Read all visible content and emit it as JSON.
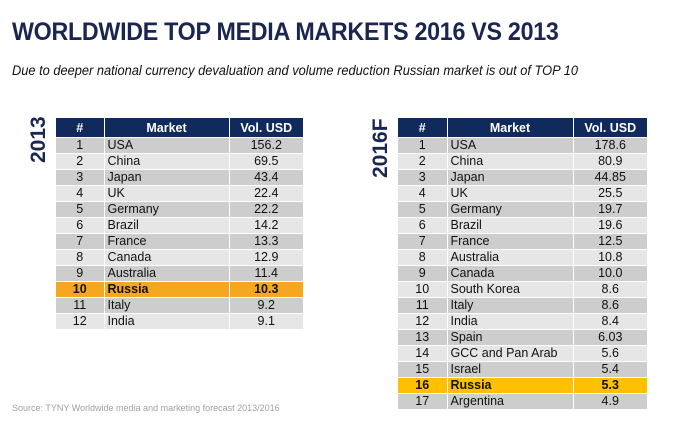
{
  "title": "WORLDWIDE TOP MEDIA MARKETS 2016 VS 2013",
  "subtitle": "Due to deeper  national currency devaluation and volume reduction Russian market is out of TOP 10",
  "colors": {
    "header_bg": "#102a5c",
    "title": "#1a2650",
    "highlight_2013": "#f5a81f",
    "highlight_2016": "#ffc000",
    "row_dark": "#cdcdcd",
    "row_light": "#e6e6e6"
  },
  "tables": [
    {
      "year_label": "2013",
      "headers": [
        "#",
        "Market",
        "Vol. USD"
      ],
      "highlight_market": "Russia",
      "rows": [
        {
          "rank": "1",
          "market": "USA",
          "vol": "156.2"
        },
        {
          "rank": "2",
          "market": "China",
          "vol": "69.5"
        },
        {
          "rank": "3",
          "market": "Japan",
          "vol": "43.4"
        },
        {
          "rank": "4",
          "market": "UK",
          "vol": "22.4"
        },
        {
          "rank": "5",
          "market": "Germany",
          "vol": "22.2"
        },
        {
          "rank": "6",
          "market": "Brazil",
          "vol": "14.2"
        },
        {
          "rank": "7",
          "market": "France",
          "vol": "13.3"
        },
        {
          "rank": "8",
          "market": "Canada",
          "vol": "12.9"
        },
        {
          "rank": "9",
          "market": "Australia",
          "vol": "11.4"
        },
        {
          "rank": "10",
          "market": "Russia",
          "vol": "10.3"
        },
        {
          "rank": "11",
          "market": "Italy",
          "vol": "9.2"
        },
        {
          "rank": "12",
          "market": "India",
          "vol": "9.1"
        }
      ]
    },
    {
      "year_label": "2016F",
      "headers": [
        "#",
        "Market",
        "Vol. USD"
      ],
      "highlight_market": "Russia",
      "rows": [
        {
          "rank": "1",
          "market": "USA",
          "vol": "178.6"
        },
        {
          "rank": "2",
          "market": "China",
          "vol": "80.9"
        },
        {
          "rank": "3",
          "market": "Japan",
          "vol": "44.85"
        },
        {
          "rank": "4",
          "market": "UK",
          "vol": "25.5"
        },
        {
          "rank": "5",
          "market": "Germany",
          "vol": "19.7"
        },
        {
          "rank": "6",
          "market": "Brazil",
          "vol": "19.6"
        },
        {
          "rank": "7",
          "market": "France",
          "vol": "12.5"
        },
        {
          "rank": "8",
          "market": "Australia",
          "vol": "10.8"
        },
        {
          "rank": "9",
          "market": "Canada",
          "vol": "10.0"
        },
        {
          "rank": "10",
          "market": "South Korea",
          "vol": "8.6"
        },
        {
          "rank": "11",
          "market": "Italy",
          "vol": "8.6"
        },
        {
          "rank": "12",
          "market": "India",
          "vol": "8.4"
        },
        {
          "rank": "13",
          "market": "Spain",
          "vol": "6.03"
        },
        {
          "rank": "14",
          "market": "GCC and Pan Arab",
          "vol": "5.6"
        },
        {
          "rank": "15",
          "market": "Israel",
          "vol": "5.4"
        },
        {
          "rank": "16",
          "market": "Russia",
          "vol": "5.3"
        },
        {
          "rank": "17",
          "market": "Argentina",
          "vol": "4.9"
        }
      ]
    }
  ],
  "source": "Source: TYNY Worldwide media and marketing forecast 2013/2016"
}
